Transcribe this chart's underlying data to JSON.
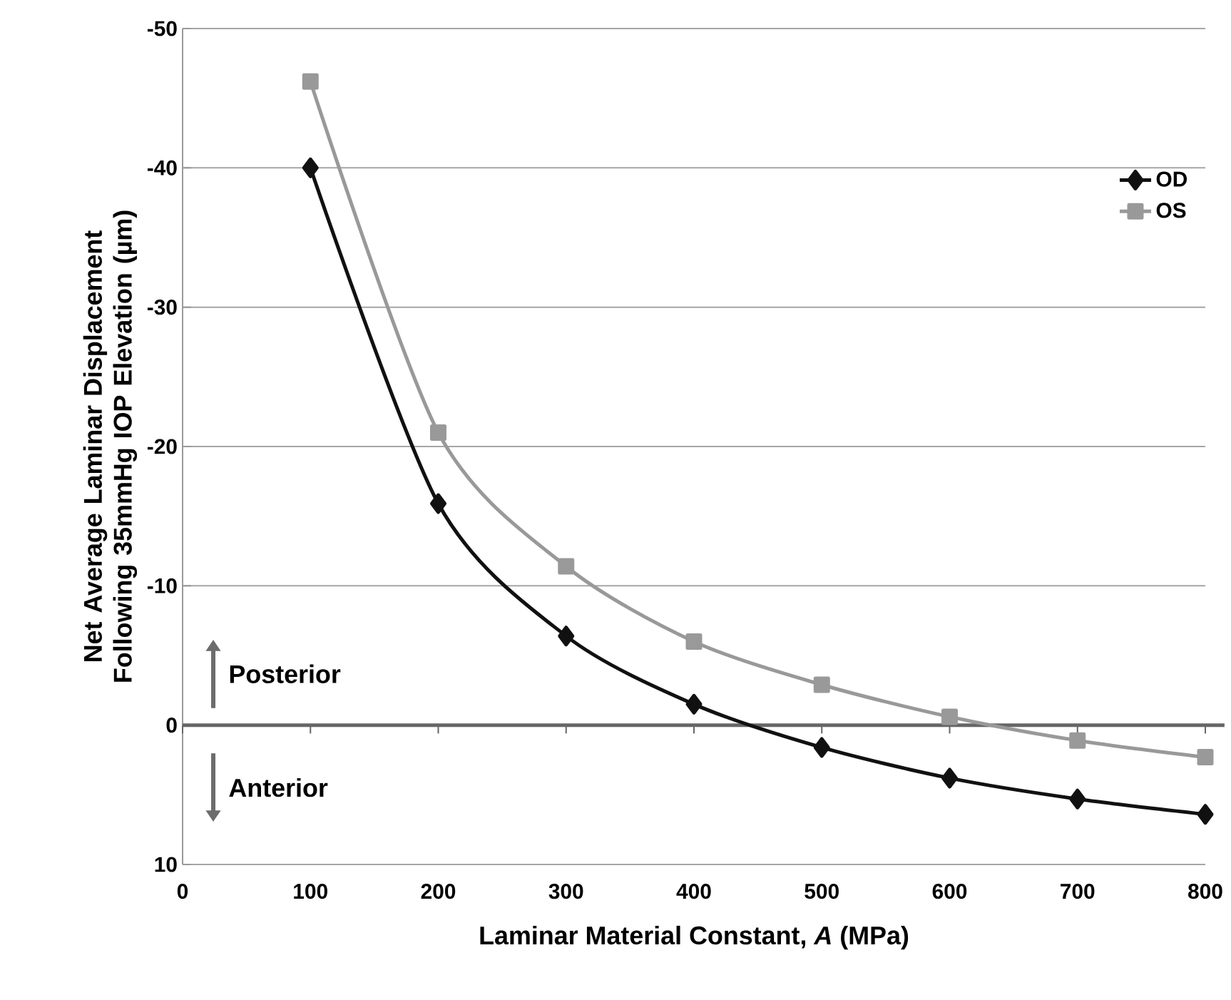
{
  "chart_data": {
    "type": "line",
    "xlabel": "Laminar Material Constant, *A* (MPa)",
    "ylabel": "Net Average Laminar Displacement Following 35mmHg IOP Elevation  (µm)",
    "x": [
      100,
      200,
      300,
      400,
      500,
      600,
      700,
      800
    ],
    "series": [
      {
        "name": "OD",
        "color": "#111111",
        "marker": "diamond",
        "values": [
          -40,
          -15.9,
          -6.4,
          -1.5,
          1.6,
          3.8,
          5.3,
          6.4
        ]
      },
      {
        "name": "OS",
        "color": "#999999",
        "marker": "square",
        "values": [
          -46.2,
          -21,
          -11.4,
          -6,
          -2.9,
          -0.6,
          1.1,
          2.3
        ]
      }
    ],
    "xlim": [
      0,
      800
    ],
    "xticks": [
      0,
      100,
      200,
      300,
      400,
      500,
      600,
      700,
      800
    ],
    "ylim": [
      10,
      -50
    ],
    "yticks": [
      -50,
      -40,
      -30,
      -20,
      -10,
      0,
      10
    ],
    "grid": "y",
    "legend": "top right",
    "line_style": "solid",
    "ref_lines": [
      {
        "axis": "y",
        "value": 0,
        "color": "#666666"
      }
    ],
    "annotations": [
      "Posterior",
      "Anterior"
    ]
  }
}
